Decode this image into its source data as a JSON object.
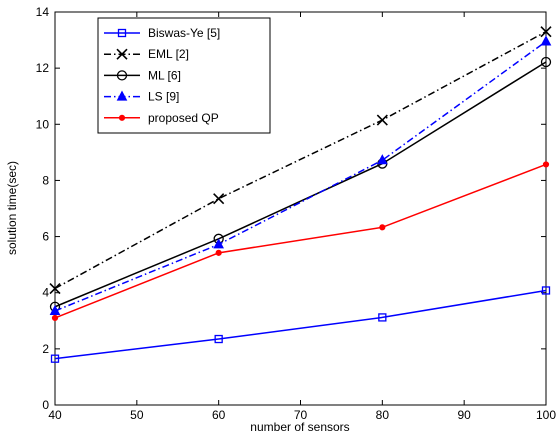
{
  "chart_data": {
    "type": "line",
    "xlabel": "number of sensors",
    "ylabel": "solution time(sec)",
    "xlim": [
      40,
      100
    ],
    "ylim": [
      0,
      14
    ],
    "xticks": [
      40,
      50,
      60,
      70,
      80,
      90,
      100
    ],
    "yticks": [
      0,
      2,
      4,
      6,
      8,
      10,
      12,
      14
    ],
    "xtick_labels": [
      "40",
      "50",
      "60",
      "70",
      "80",
      "90",
      "100"
    ],
    "ytick_labels": [
      "0",
      "2",
      "4",
      "6",
      "8",
      "10",
      "12",
      "14"
    ],
    "grid": false,
    "legend_position": "top-left",
    "series": [
      {
        "name": "Biswas-Ye [5]",
        "x": [
          40,
          60,
          80,
          100
        ],
        "y": [
          1.65,
          2.35,
          3.12,
          4.08
        ],
        "color": "#0000ff",
        "line_style": "solid",
        "marker": "square"
      },
      {
        "name": "EML [2]",
        "x": [
          40,
          60,
          80,
          100
        ],
        "y": [
          4.15,
          7.35,
          10.15,
          13.3
        ],
        "color": "#000000",
        "line_style": "dash-dot",
        "marker": "x"
      },
      {
        "name": "ML [6]",
        "x": [
          40,
          60,
          80,
          100
        ],
        "y": [
          3.5,
          5.92,
          8.6,
          12.22
        ],
        "color": "#000000",
        "line_style": "solid",
        "marker": "circle"
      },
      {
        "name": "LS [9]",
        "x": [
          40,
          60,
          80,
          100
        ],
        "y": [
          3.35,
          5.72,
          8.72,
          12.95
        ],
        "color": "#0000ff",
        "line_style": "dash-dot",
        "marker": "triangle"
      },
      {
        "name": "proposed QP",
        "x": [
          40,
          60,
          80,
          100
        ],
        "y": [
          3.1,
          5.42,
          6.33,
          8.57
        ],
        "color": "#ff0000",
        "line_style": "solid",
        "marker": "star"
      }
    ]
  }
}
